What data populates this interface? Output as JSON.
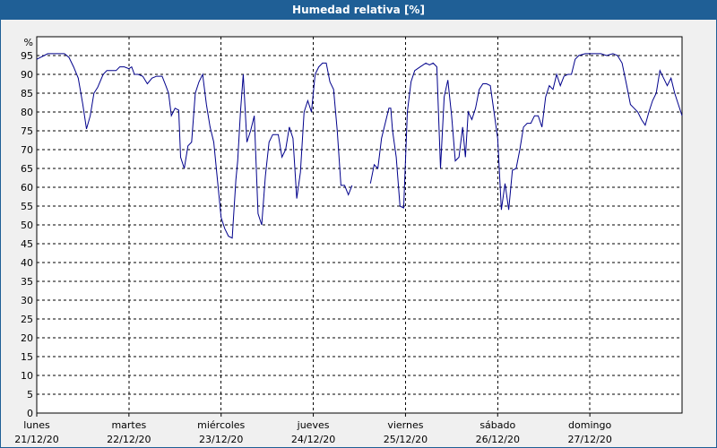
{
  "window": {
    "title": "Humedad relativa [%]"
  },
  "colors": {
    "titlebar": "#1f5f96",
    "line": "#00008b",
    "grid": "#000000",
    "background": "#f0f0f0"
  },
  "chart_data": {
    "type": "line",
    "title": "Humedad relativa [%]",
    "ylabel": "%",
    "ylim": [
      0,
      100
    ],
    "yticks": [
      0,
      5,
      10,
      15,
      20,
      25,
      30,
      35,
      40,
      45,
      50,
      55,
      60,
      65,
      70,
      75,
      80,
      85,
      90,
      95
    ],
    "xlim": [
      0,
      7
    ],
    "grid": true,
    "day_labels": [
      {
        "day": "lunes",
        "date": "21/12/20"
      },
      {
        "day": "martes",
        "date": "22/12/20"
      },
      {
        "day": "miércoles",
        "date": "23/12/20"
      },
      {
        "day": "jueves",
        "date": "24/12/20"
      },
      {
        "day": "viernes",
        "date": "25/12/20"
      },
      {
        "day": "sábado",
        "date": "26/12/20"
      },
      {
        "day": "domingo",
        "date": "27/12/20"
      }
    ],
    "series": [
      {
        "segments": [
          [
            [
              0,
              94
            ],
            [
              0.04,
              94.5
            ],
            [
              0.08,
              95
            ],
            [
              0.12,
              95.5
            ],
            [
              0.2,
              95.5
            ],
            [
              0.3,
              95.5
            ],
            [
              0.35,
              94.5
            ],
            [
              0.4,
              92
            ],
            [
              0.45,
              89
            ],
            [
              0.5,
              82
            ],
            [
              0.54,
              75.5
            ],
            [
              0.58,
              79
            ],
            [
              0.62,
              85
            ],
            [
              0.66,
              86.5
            ],
            [
              0.72,
              90
            ],
            [
              0.76,
              91
            ],
            [
              0.82,
              91
            ],
            [
              0.86,
              91
            ],
            [
              0.9,
              92
            ],
            [
              0.95,
              92
            ],
            [
              1.0,
              91.5
            ],
            [
              1.03,
              92
            ],
            [
              1.06,
              90
            ],
            [
              1.1,
              90
            ],
            [
              1.15,
              89.5
            ],
            [
              1.2,
              87.5
            ],
            [
              1.25,
              89
            ],
            [
              1.3,
              89.5
            ],
            [
              1.36,
              89.5
            ],
            [
              1.4,
              87
            ],
            [
              1.43,
              85
            ],
            [
              1.46,
              79
            ],
            [
              1.5,
              81
            ],
            [
              1.54,
              80.5
            ],
            [
              1.56,
              68
            ],
            [
              1.6,
              65
            ],
            [
              1.64,
              71
            ],
            [
              1.68,
              72
            ],
            [
              1.72,
              85
            ],
            [
              1.76,
              88
            ],
            [
              1.8,
              90
            ],
            [
              1.84,
              82
            ],
            [
              1.88,
              76
            ],
            [
              1.92,
              72
            ],
            [
              1.96,
              62
            ],
            [
              2.0,
              52
            ],
            [
              2.04,
              49
            ],
            [
              2.08,
              47
            ],
            [
              2.12,
              46.5
            ],
            [
              2.16,
              62
            ],
            [
              2.18,
              67
            ],
            [
              2.21,
              80
            ],
            [
              2.24,
              90
            ],
            [
              2.28,
              72
            ],
            [
              2.32,
              75
            ],
            [
              2.36,
              79
            ],
            [
              2.4,
              53
            ],
            [
              2.44,
              50
            ],
            [
              2.48,
              63
            ],
            [
              2.52,
              72
            ],
            [
              2.56,
              74
            ],
            [
              2.62,
              74
            ],
            [
              2.66,
              68
            ],
            [
              2.7,
              70
            ],
            [
              2.74,
              76
            ],
            [
              2.78,
              73
            ],
            [
              2.82,
              57
            ],
            [
              2.86,
              64
            ],
            [
              2.9,
              80
            ],
            [
              2.94,
              83
            ],
            [
              2.98,
              80
            ],
            [
              3.02,
              90
            ],
            [
              3.06,
              92
            ],
            [
              3.1,
              93
            ],
            [
              3.14,
              93
            ],
            [
              3.18,
              88
            ],
            [
              3.22,
              86
            ],
            [
              3.26,
              75
            ],
            [
              3.3,
              60.5
            ],
            [
              3.34,
              60.5
            ],
            [
              3.38,
              58
            ],
            [
              3.42,
              60.5
            ]
          ],
          [
            [
              3.62,
              61
            ],
            [
              3.66,
              66
            ],
            [
              3.7,
              65
            ],
            [
              3.74,
              73
            ],
            [
              3.78,
              77
            ],
            [
              3.82,
              81
            ],
            [
              3.84,
              81
            ],
            [
              3.86,
              75
            ],
            [
              3.9,
              68
            ],
            [
              3.94,
              55
            ],
            [
              3.98,
              54.5
            ],
            [
              4.02,
              80
            ],
            [
              4.06,
              88
            ],
            [
              4.1,
              91
            ],
            [
              4.16,
              92
            ],
            [
              4.22,
              93
            ],
            [
              4.26,
              92.5
            ],
            [
              4.3,
              93
            ],
            [
              4.34,
              92
            ],
            [
              4.38,
              65
            ],
            [
              4.42,
              84
            ],
            [
              4.46,
              88.5
            ],
            [
              4.5,
              79
            ],
            [
              4.54,
              67
            ],
            [
              4.58,
              68
            ],
            [
              4.62,
              76
            ],
            [
              4.65,
              68
            ],
            [
              4.68,
              80
            ],
            [
              4.72,
              78
            ],
            [
              4.76,
              81
            ],
            [
              4.8,
              86
            ],
            [
              4.84,
              87.5
            ],
            [
              4.88,
              87.5
            ],
            [
              4.92,
              87
            ],
            [
              4.96,
              80
            ],
            [
              5.0,
              73
            ],
            [
              5.04,
              54
            ],
            [
              5.08,
              61
            ],
            [
              5.12,
              54
            ],
            [
              5.16,
              64.5
            ],
            [
              5.2,
              65
            ],
            [
              5.24,
              70
            ],
            [
              5.28,
              76
            ],
            [
              5.32,
              77
            ],
            [
              5.36,
              77
            ],
            [
              5.4,
              79
            ],
            [
              5.44,
              79
            ],
            [
              5.48,
              76
            ],
            [
              5.52,
              84
            ],
            [
              5.56,
              87
            ],
            [
              5.6,
              86
            ],
            [
              5.64,
              90
            ],
            [
              5.68,
              87
            ],
            [
              5.72,
              89.5
            ],
            [
              5.76,
              90
            ],
            [
              5.8,
              90
            ],
            [
              5.84,
              94
            ],
            [
              5.88,
              95
            ],
            [
              5.95,
              95.5
            ],
            [
              6.05,
              95.5
            ],
            [
              6.12,
              95.5
            ],
            [
              6.18,
              95
            ],
            [
              6.25,
              95.5
            ],
            [
              6.3,
              95
            ],
            [
              6.35,
              93
            ],
            [
              6.4,
              87
            ],
            [
              6.44,
              82
            ],
            [
              6.48,
              81
            ],
            [
              6.52,
              80
            ],
            [
              6.56,
              78
            ],
            [
              6.6,
              76.5
            ],
            [
              6.64,
              80
            ],
            [
              6.68,
              83
            ],
            [
              6.72,
              85
            ],
            [
              6.76,
              91
            ],
            [
              6.8,
              89
            ],
            [
              6.84,
              87
            ],
            [
              6.88,
              89
            ],
            [
              6.92,
              85
            ],
            [
              6.96,
              82
            ],
            [
              7.0,
              79
            ]
          ]
        ]
      }
    ]
  }
}
